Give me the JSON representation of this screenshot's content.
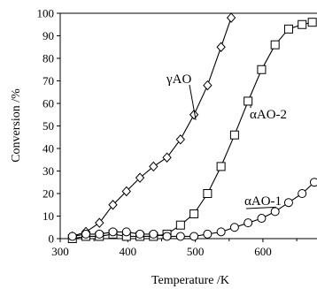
{
  "chart_data": {
    "type": "line",
    "xlabel": "Temperature /K",
    "ylabel": "Conversion /%",
    "xlim": [
      300,
      680
    ],
    "ylim": [
      0,
      100
    ],
    "xticks": [
      "300",
      "400",
      "500",
      "600"
    ],
    "yticks": [
      "0",
      "10",
      "20",
      "30",
      "40",
      "50",
      "60",
      "70",
      "80",
      "90",
      "100"
    ],
    "grid": false,
    "series": [
      {
        "name": "γAO",
        "marker": "diamond",
        "x": [
          318,
          338,
          358,
          378,
          398,
          418,
          438,
          458,
          478,
          498,
          518,
          538,
          553
        ],
        "y": [
          1,
          3,
          7,
          15,
          21,
          27,
          32,
          36,
          44,
          55,
          68,
          85,
          98
        ]
      },
      {
        "name": "αAO-2",
        "marker": "square",
        "x": [
          318,
          338,
          358,
          378,
          398,
          418,
          438,
          458,
          478,
          498,
          518,
          538,
          558,
          578,
          598,
          618,
          638,
          658,
          673
        ],
        "y": [
          0,
          1,
          1,
          2,
          1,
          1,
          1,
          2,
          6,
          11,
          20,
          32,
          46,
          61,
          75,
          86,
          93,
          95,
          96
        ]
      },
      {
        "name": "αAO-1",
        "marker": "circle",
        "x": [
          318,
          338,
          358,
          378,
          398,
          418,
          438,
          458,
          478,
          498,
          518,
          538,
          558,
          578,
          598,
          618,
          638,
          658,
          676
        ],
        "y": [
          1,
          2,
          2,
          3,
          3,
          2,
          2,
          1,
          1,
          1,
          2,
          3,
          5,
          7,
          9,
          12,
          16,
          20,
          25
        ]
      }
    ]
  }
}
